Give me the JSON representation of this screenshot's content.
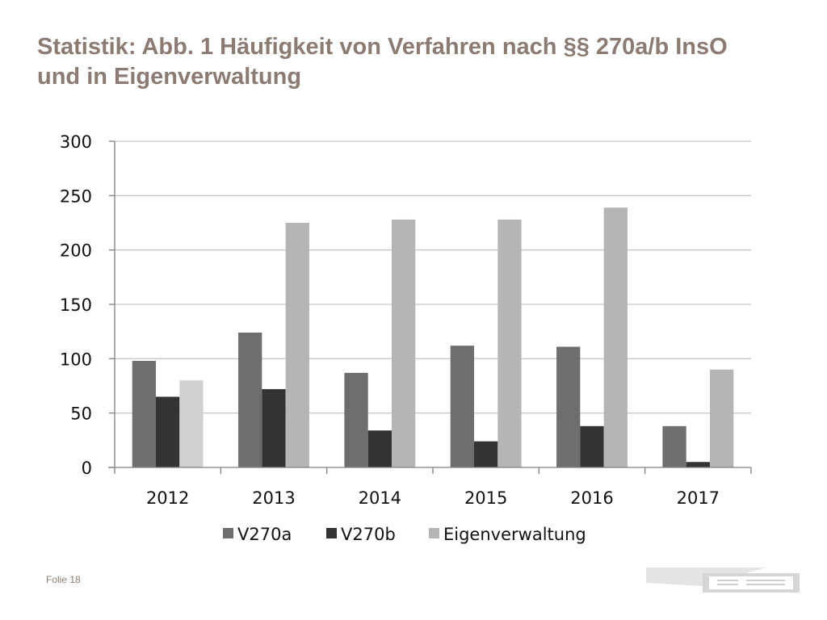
{
  "slide": {
    "title": "Statistik: Abb. 1 Häufigkeit von Verfahren nach §§ 270a/b InsO und in Eigenverwaltung",
    "footer": "Folie 18"
  },
  "colors": {
    "title": "#8b7b72",
    "grid": "#c8c8c8",
    "axis": "#7f7f7f"
  },
  "chart_data": {
    "type": "bar",
    "categories": [
      "2012",
      "2013",
      "2014",
      "2015",
      "2016",
      "2017"
    ],
    "series": [
      {
        "name": "V270a",
        "color": "#6e6e6e",
        "values": [
          98,
          124,
          87,
          112,
          111,
          38
        ]
      },
      {
        "name": "V270b",
        "color": "#333333",
        "values": [
          65,
          72,
          34,
          24,
          38,
          5
        ]
      },
      {
        "name": "Eigenverwaltung",
        "color": "#b5b5b5",
        "values": [
          80,
          225,
          228,
          228,
          239,
          90
        ]
      }
    ],
    "point_colors": {
      "Eigenverwaltung": {
        "2012": "#d0d0d0"
      }
    },
    "ylim": [
      0,
      300
    ],
    "yticks": [
      0,
      50,
      100,
      150,
      200,
      250,
      300
    ],
    "grid": true,
    "legend_position": "bottom"
  }
}
